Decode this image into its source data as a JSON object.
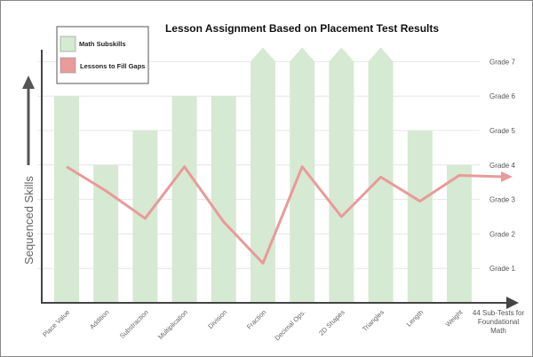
{
  "chart_data": {
    "type": "bar",
    "title": "Lesson Assignment Based on Placement Test Results",
    "ylabel": "Sequenced Skills",
    "xlabel_lines": [
      "44 Sub-Tests for",
      "Foundational",
      "Math"
    ],
    "ylim": [
      0,
      7
    ],
    "y_ticks": [
      "Grade 1",
      "Grade 2",
      "Grade 3",
      "Grade 4",
      "Grade 5",
      "Grade 6",
      "Grade 7"
    ],
    "grid": true,
    "legend_position": "top-left",
    "categories": [
      "Place Value",
      "Addition",
      "Substraction",
      "Multiplication",
      "Division",
      "Fraction",
      "Decimal Ops.",
      "2D Shapes",
      "Triangles",
      "Length",
      "Weight"
    ],
    "series": [
      {
        "name": "Math Subskills",
        "type": "bar",
        "color": "#d6e9d2",
        "values": [
          6,
          4,
          5,
          6,
          6,
          7,
          7,
          7,
          7,
          5,
          4
        ],
        "continues_above": [
          false,
          false,
          false,
          false,
          false,
          true,
          true,
          true,
          true,
          false,
          false
        ]
      },
      {
        "name": "Lessons to Fill Gaps",
        "type": "line",
        "color": "#e99a9a",
        "values": [
          3.95,
          3.25,
          2.45,
          3.95,
          2.35,
          1.15,
          3.95,
          2.5,
          3.65,
          2.95,
          3.7
        ]
      }
    ]
  }
}
